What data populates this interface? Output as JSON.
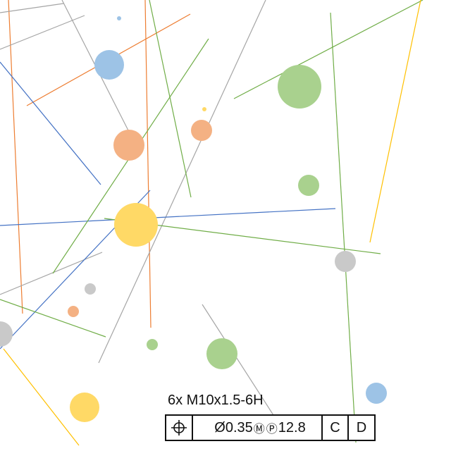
{
  "callout": {
    "thread_note": "6x M10x1.5-6H",
    "frame": {
      "symbol_icon": "position-icon",
      "diameter_symbol": "Ø",
      "tolerance_value": "0.35",
      "material_modifier": "Ⓜ",
      "projected_modifier": "Ⓟ",
      "projected_height": "12.8",
      "datum_primary": "C",
      "datum_secondary": "D"
    }
  },
  "colors": {
    "orange": "#ed7d31",
    "blue": "#4472c4",
    "green": "#70ad47",
    "gray": "#a5a5a5",
    "yellow": "#ffc000",
    "light_orange": "#f4b183",
    "light_blue": "#9dc3e6",
    "light_green": "#a9d18e",
    "light_gray": "#c9c9c9",
    "light_yellow": "#ffd966",
    "frame": "#111111"
  }
}
